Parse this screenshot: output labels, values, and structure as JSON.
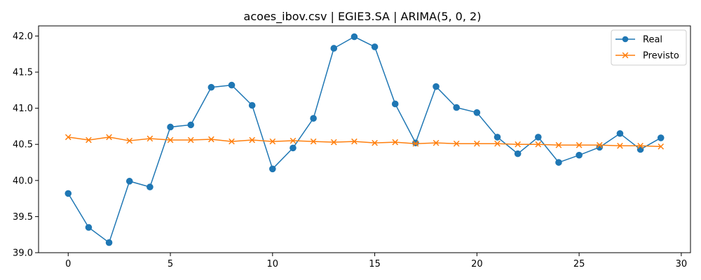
{
  "chart_data": {
    "type": "line",
    "title": "acoes_ibov.csv | EGIE3.SA | ARIMA(5, 0, 2)",
    "xlabel": "",
    "ylabel": "",
    "xlim": [
      -1.45,
      30.45
    ],
    "ylim": [
      39.0,
      42.14
    ],
    "xticks": [
      0,
      5,
      10,
      15,
      20,
      25,
      30
    ],
    "yticks": [
      39.0,
      39.5,
      40.0,
      40.5,
      41.0,
      41.5,
      42.0
    ],
    "x": [
      0,
      1,
      2,
      3,
      4,
      5,
      6,
      7,
      8,
      9,
      10,
      11,
      12,
      13,
      14,
      15,
      16,
      17,
      18,
      19,
      20,
      21,
      22,
      23,
      24,
      25,
      26,
      27,
      28,
      29
    ],
    "series": [
      {
        "name": "Real",
        "color": "#1f77b4",
        "marker": "circle",
        "values": [
          39.82,
          39.35,
          39.14,
          39.99,
          39.91,
          40.74,
          40.77,
          41.29,
          41.32,
          41.04,
          40.16,
          40.45,
          40.86,
          41.83,
          41.99,
          41.85,
          41.06,
          40.52,
          41.3,
          41.01,
          40.94,
          40.6,
          40.37,
          40.6,
          40.25,
          40.35,
          40.46,
          40.65,
          40.43,
          40.59
        ]
      },
      {
        "name": "Previsto",
        "color": "#ff7f0e",
        "marker": "x",
        "values": [
          40.6,
          40.56,
          40.6,
          40.55,
          40.58,
          40.56,
          40.56,
          40.57,
          40.54,
          40.56,
          40.54,
          40.55,
          40.54,
          40.53,
          40.54,
          40.52,
          40.53,
          40.51,
          40.52,
          40.51,
          40.51,
          40.51,
          40.5,
          40.5,
          40.49,
          40.49,
          40.49,
          40.48,
          40.48,
          40.47
        ]
      }
    ],
    "legend": "top-right",
    "grid": false
  }
}
